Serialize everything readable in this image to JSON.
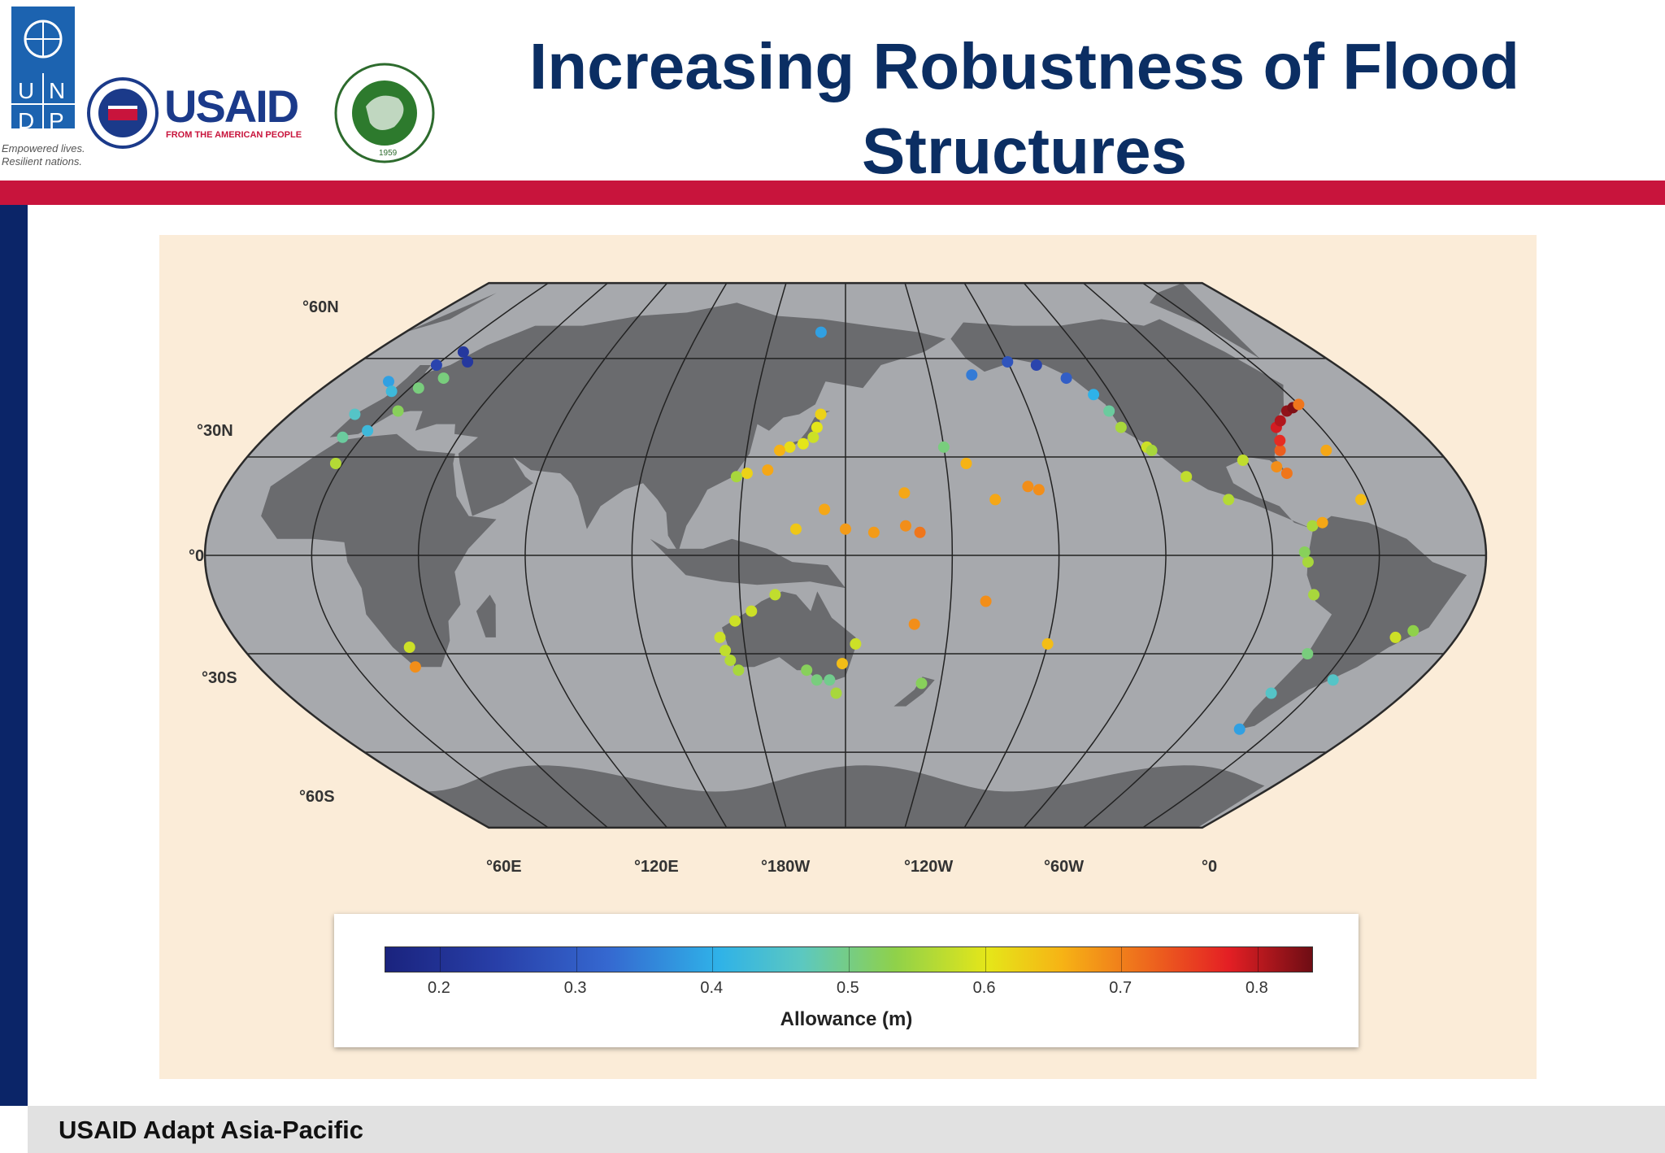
{
  "slide": {
    "title_line1": "Increasing Robustness of Flood",
    "title_line2": "Structures",
    "footer": "USAID Adapt Asia-Pacific"
  },
  "logos": {
    "undp_text": "U N D P",
    "undp_tagline1": "Empowered lives.",
    "undp_tagline2": "Resilient nations.",
    "usaid": "USAID",
    "usaid_sub": "FROM THE AMERICAN PEOPLE",
    "ait": "ASIAN INSTITUTE OF TECHNOLOGY",
    "ait_year": "1959"
  },
  "map": {
    "lat_labels": [
      "°60N",
      "°30N",
      "°0",
      "°30S",
      "°60S"
    ],
    "lon_labels": [
      "°60E",
      "°120E",
      "°180W",
      "°120W",
      "°60W",
      "°0"
    ],
    "legend": {
      "title": "Allowance (m)",
      "ticks": [
        "0.2",
        "0.3",
        "0.4",
        "0.5",
        "0.6",
        "0.7",
        "0.8"
      ],
      "range": [
        0.16,
        0.84
      ]
    },
    "colors": {
      "ocean": "#a7a9ad",
      "land": "#6a6b6e",
      "frame": "#fbecd8"
    },
    "stations": [
      {
        "lon": 180,
        "lat": 33,
        "v": 0.5
      },
      {
        "lon": 142,
        "lat": 43,
        "v": 0.62
      },
      {
        "lon": 141,
        "lat": 39,
        "v": 0.6
      },
      {
        "lon": 140,
        "lat": 36,
        "v": 0.58
      },
      {
        "lon": 137,
        "lat": 34,
        "v": 0.6
      },
      {
        "lon": 133,
        "lat": 33,
        "v": 0.61
      },
      {
        "lon": 130,
        "lat": 32,
        "v": 0.65
      },
      {
        "lon": 127,
        "lat": 26,
        "v": 0.66
      },
      {
        "lon": 121,
        "lat": 25,
        "v": 0.62
      },
      {
        "lon": 118,
        "lat": 24,
        "v": 0.55
      },
      {
        "lon": 144,
        "lat": 14,
        "v": 0.66
      },
      {
        "lon": 136,
        "lat": 8,
        "v": 0.63
      },
      {
        "lon": 150,
        "lat": 8,
        "v": 0.67
      },
      {
        "lon": 158,
        "lat": 7,
        "v": 0.67
      },
      {
        "lon": 167,
        "lat": 9,
        "v": 0.68
      },
      {
        "lon": 171,
        "lat": 7,
        "v": 0.7
      },
      {
        "lon": 167,
        "lat": 19,
        "v": 0.66
      },
      {
        "lon": 186,
        "lat": 28,
        "v": 0.65
      },
      {
        "lon": 193,
        "lat": 17,
        "v": 0.66
      },
      {
        "lon": 203,
        "lat": 21,
        "v": 0.68
      },
      {
        "lon": 206,
        "lat": 20,
        "v": 0.68
      },
      {
        "lon": 190,
        "lat": -14,
        "v": 0.68
      },
      {
        "lon": 170,
        "lat": -21,
        "v": 0.68
      },
      {
        "lon": 210,
        "lat": -27,
        "v": 0.64
      },
      {
        "lon": 115,
        "lat": -32,
        "v": 0.56
      },
      {
        "lon": 117,
        "lat": -35,
        "v": 0.55
      },
      {
        "lon": 114,
        "lat": -29,
        "v": 0.57
      },
      {
        "lon": 113,
        "lat": -25,
        "v": 0.58
      },
      {
        "lon": 118,
        "lat": -20,
        "v": 0.58
      },
      {
        "lon": 123,
        "lat": -17,
        "v": 0.58
      },
      {
        "lon": 130,
        "lat": -12,
        "v": 0.57
      },
      {
        "lon": 138,
        "lat": -35,
        "v": 0.52
      },
      {
        "lon": 141,
        "lat": -38,
        "v": 0.5
      },
      {
        "lon": 145,
        "lat": -38,
        "v": 0.49
      },
      {
        "lon": 147,
        "lat": -42,
        "v": 0.55
      },
      {
        "lon": 149,
        "lat": -33,
        "v": 0.64
      },
      {
        "lon": 153,
        "lat": -27,
        "v": 0.58
      },
      {
        "lon": 174,
        "lat": -39,
        "v": 0.52
      },
      {
        "lon": -165,
        "lat": 55,
        "v": 0.34
      },
      {
        "lon": -150,
        "lat": 59,
        "v": 0.28
      },
      {
        "lon": -140,
        "lat": 58,
        "v": 0.25
      },
      {
        "lon": -132,
        "lat": 54,
        "v": 0.3
      },
      {
        "lon": -126,
        "lat": 49,
        "v": 0.4
      },
      {
        "lon": -124,
        "lat": 44,
        "v": 0.48
      },
      {
        "lon": -123,
        "lat": 39,
        "v": 0.55
      },
      {
        "lon": -118,
        "lat": 33,
        "v": 0.58
      },
      {
        "lon": -117,
        "lat": 32,
        "v": 0.55
      },
      {
        "lon": -110,
        "lat": 24,
        "v": 0.57
      },
      {
        "lon": -100,
        "lat": 17,
        "v": 0.56
      },
      {
        "lon": -91,
        "lat": 29,
        "v": 0.57
      },
      {
        "lon": -80,
        "lat": 25,
        "v": 0.7
      },
      {
        "lon": -82,
        "lat": 27,
        "v": 0.68
      },
      {
        "lon": -78,
        "lat": 32,
        "v": 0.72
      },
      {
        "lon": -76,
        "lat": 35,
        "v": 0.76
      },
      {
        "lon": -74,
        "lat": 39,
        "v": 0.78
      },
      {
        "lon": -71,
        "lat": 41,
        "v": 0.8
      },
      {
        "lon": -66,
        "lat": 44,
        "v": 0.82
      },
      {
        "lon": -63,
        "lat": 45,
        "v": 0.83
      },
      {
        "lon": -60,
        "lat": 46,
        "v": 0.7
      },
      {
        "lon": -64,
        "lat": 32,
        "v": 0.66
      },
      {
        "lon": -62,
        "lat": 17,
        "v": 0.64
      },
      {
        "lon": -78,
        "lat": 9,
        "v": 0.55
      },
      {
        "lon": -75,
        "lat": 10,
        "v": 0.66
      },
      {
        "lon": -80,
        "lat": -2,
        "v": 0.55
      },
      {
        "lon": -81,
        "lat": 1,
        "v": 0.52
      },
      {
        "lon": -77,
        "lat": -12,
        "v": 0.55
      },
      {
        "lon": -71,
        "lat": -30,
        "v": 0.5
      },
      {
        "lon": -73,
        "lat": -42,
        "v": 0.45
      },
      {
        "lon": -72,
        "lat": -53,
        "v": 0.38
      },
      {
        "lon": -57,
        "lat": -38,
        "v": 0.45
      },
      {
        "lon": -48,
        "lat": -25,
        "v": 0.58
      },
      {
        "lon": -44,
        "lat": -23,
        "v": 0.53
      },
      {
        "lon": 18,
        "lat": -34,
        "v": 0.68
      },
      {
        "lon": 20,
        "lat": -28,
        "v": 0.58
      },
      {
        "lon": -10,
        "lat": 53,
        "v": 0.38
      },
      {
        "lon": -9,
        "lat": 43,
        "v": 0.45
      },
      {
        "lon": -5,
        "lat": 50,
        "v": 0.42
      },
      {
        "lon": 0,
        "lat": 58,
        "v": 0.25
      },
      {
        "lon": 4,
        "lat": 62,
        "v": 0.22
      },
      {
        "lon": 10,
        "lat": 59,
        "v": 0.22
      },
      {
        "lon": 8,
        "lat": 54,
        "v": 0.5
      },
      {
        "lon": 3,
        "lat": 51,
        "v": 0.5
      },
      {
        "lon": -6,
        "lat": 36,
        "v": 0.48
      },
      {
        "lon": 0,
        "lat": 38,
        "v": 0.42
      },
      {
        "lon": 4,
        "lat": 44,
        "v": 0.52
      },
      {
        "lon": -2,
        "lat": 28,
        "v": 0.56
      },
      {
        "lon": 140,
        "lat": 68,
        "v": 0.38
      }
    ]
  }
}
